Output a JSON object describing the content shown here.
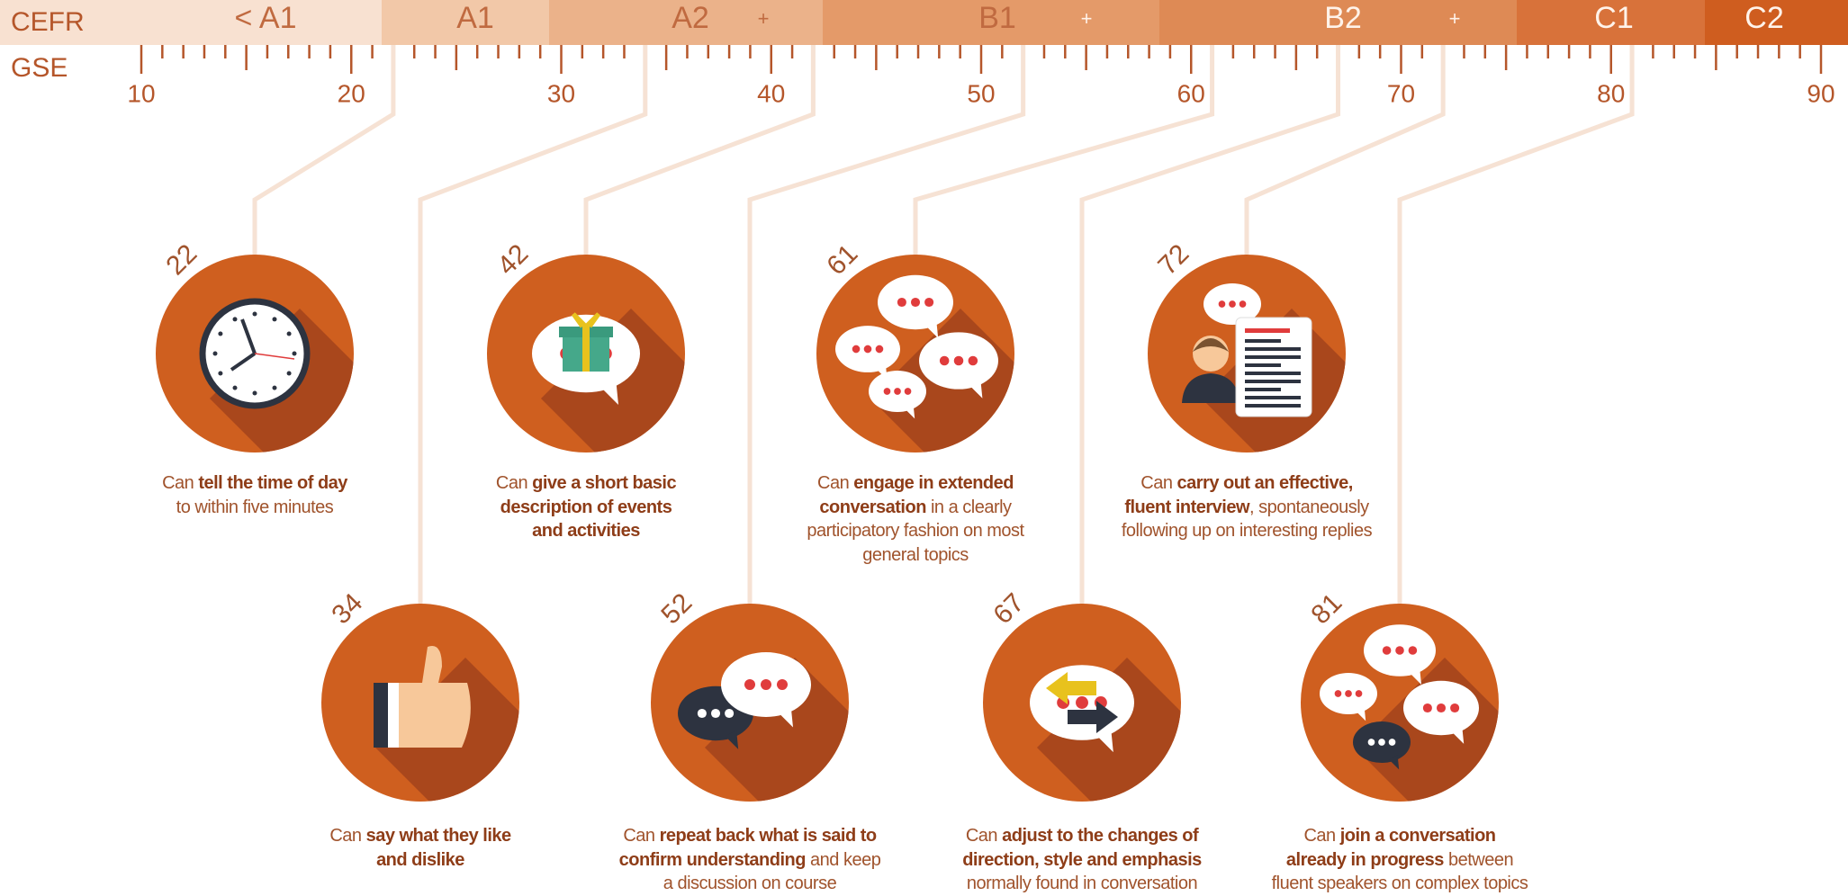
{
  "cefr": {
    "label": "CEFR",
    "levels": [
      "< A1",
      "A1",
      "A2",
      "+",
      "B1",
      "+",
      "B2",
      "+",
      "C1",
      "C2"
    ]
  },
  "gse": {
    "label": "GSE",
    "range": [
      10,
      90
    ],
    "ticks": [
      10,
      20,
      30,
      40,
      50,
      60,
      70,
      80,
      90
    ]
  },
  "items": [
    {
      "gse": 22,
      "lines": [
        [
          {
            "text": "Can ",
            "bold": false
          },
          {
            "text": "tell the time of day",
            "bold": true
          }
        ],
        [
          {
            "text": "to within five minutes",
            "bold": false
          }
        ]
      ]
    },
    {
      "gse": 34,
      "lines": [
        [
          {
            "text": "Can ",
            "bold": false
          },
          {
            "text": "say what they like",
            "bold": true
          }
        ],
        [
          {
            "text": "and dislike",
            "bold": true
          }
        ]
      ]
    },
    {
      "gse": 42,
      "lines": [
        [
          {
            "text": "Can ",
            "bold": false
          },
          {
            "text": "give a short basic",
            "bold": true
          }
        ],
        [
          {
            "text": "description of events",
            "bold": true
          }
        ],
        [
          {
            "text": "and activities",
            "bold": true
          }
        ]
      ]
    },
    {
      "gse": 52,
      "lines": [
        [
          {
            "text": "Can ",
            "bold": false
          },
          {
            "text": "repeat back what is said to",
            "bold": true
          }
        ],
        [
          {
            "text": "confirm understanding",
            "bold": true
          },
          {
            "text": " and keep",
            "bold": false
          }
        ],
        [
          {
            "text": "a discussion on course",
            "bold": false
          }
        ]
      ]
    },
    {
      "gse": 61,
      "lines": [
        [
          {
            "text": "Can ",
            "bold": false
          },
          {
            "text": "engage in extended",
            "bold": true
          }
        ],
        [
          {
            "text": "conversation",
            "bold": true
          },
          {
            "text": " in a clearly",
            "bold": false
          }
        ],
        [
          {
            "text": "participatory fashion on most",
            "bold": false
          }
        ],
        [
          {
            "text": "general topics",
            "bold": false
          }
        ]
      ]
    },
    {
      "gse": 67,
      "lines": [
        [
          {
            "text": "Can ",
            "bold": false
          },
          {
            "text": "adjust to the changes of",
            "bold": true
          }
        ],
        [
          {
            "text": "direction, style and emphasis",
            "bold": true
          }
        ],
        [
          {
            "text": "normally found in conversation",
            "bold": false
          }
        ]
      ]
    },
    {
      "gse": 72,
      "lines": [
        [
          {
            "text": "Can ",
            "bold": false
          },
          {
            "text": "carry out an effective,",
            "bold": true
          }
        ],
        [
          {
            "text": "fluent interview",
            "bold": true
          },
          {
            "text": ", spontaneously",
            "bold": false
          }
        ],
        [
          {
            "text": "following up on interesting replies",
            "bold": false
          }
        ]
      ]
    },
    {
      "gse": 81,
      "lines": [
        [
          {
            "text": "Can ",
            "bold": false
          },
          {
            "text": "join a conversation",
            "bold": true
          }
        ],
        [
          {
            "text": "already in progress",
            "bold": true
          },
          {
            "text": " between",
            "bold": false
          }
        ],
        [
          {
            "text": "fluent speakers on complex topics",
            "bold": false
          }
        ]
      ]
    }
  ]
}
